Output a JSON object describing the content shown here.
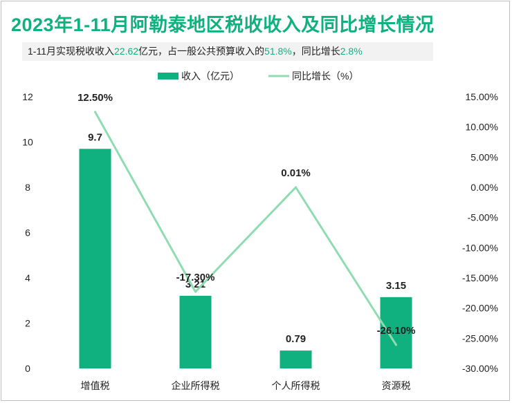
{
  "title": "2023年1-11月阿勒泰地区税收收入及同比增长情况",
  "subtitle": {
    "p1": "1-11月实现税收收入",
    "v1": "22.62",
    "p2": "亿元，占一般公共预算收入的",
    "v2": "51.8%",
    "p3": "，同比增长",
    "v3": "2.8%"
  },
  "colors": {
    "bar": "#10b07f",
    "line": "#8fdcb0",
    "accent": "#10b07f"
  },
  "chart_data": {
    "type": "bar",
    "categories": [
      "增值税",
      "企业所得税",
      "个人所得税",
      "资源税"
    ],
    "series": [
      {
        "name": "收入（亿元）",
        "type": "bar",
        "axis": "left",
        "values": [
          9.7,
          3.21,
          0.79,
          3.15
        ],
        "labels": [
          "9.7",
          "3.21",
          "0.79",
          "3.15"
        ]
      },
      {
        "name": "同比增长（%）",
        "type": "line",
        "axis": "right",
        "values": [
          12.5,
          -17.3,
          0.01,
          -26.1
        ],
        "labels": [
          "12.50%",
          "-17.30%",
          "0.01%",
          "-26.10%"
        ]
      }
    ],
    "left_axis": {
      "min": 0,
      "max": 12,
      "ticks": [
        "0",
        "2",
        "4",
        "6",
        "8",
        "10",
        "12"
      ]
    },
    "right_axis": {
      "min": -30,
      "max": 15,
      "ticks": [
        "-30.00%",
        "-25.00%",
        "-20.00%",
        "-15.00%",
        "-10.00%",
        "-5.00%",
        "0.00%",
        "5.00%",
        "10.00%",
        "15.00%"
      ]
    },
    "legend_position": "top"
  }
}
